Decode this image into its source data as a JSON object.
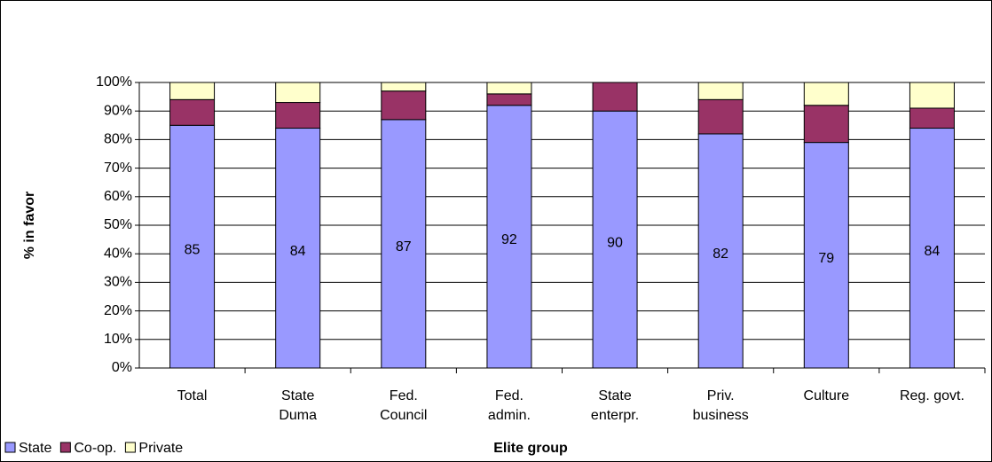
{
  "chart_data": {
    "type": "bar",
    "stacked": true,
    "x_label": "Elite group",
    "y_label": "% in favor",
    "categories": [
      "Total",
      "State Duma",
      "Fed. Council",
      "Fed. admin.",
      "State enterpr.",
      "Priv. business",
      "Culture",
      "Reg. govt."
    ],
    "series": [
      {
        "name": "State",
        "color": "#9999ff",
        "values": [
          85,
          84,
          87,
          92,
          90,
          82,
          79,
          84
        ]
      },
      {
        "name": "Co-op.",
        "color": "#993366",
        "values": [
          9,
          9,
          10,
          4,
          10,
          12,
          13,
          7
        ]
      },
      {
        "name": "Private",
        "color": "#ffffcc",
        "values": [
          6,
          7,
          3,
          4,
          0,
          6,
          8,
          9
        ]
      }
    ],
    "ylim": [
      0,
      100
    ],
    "yticks": [
      {
        "value": 0,
        "label": "0%"
      },
      {
        "value": 10,
        "label": "10%"
      },
      {
        "value": 20,
        "label": "20%"
      },
      {
        "value": 30,
        "label": "30%"
      },
      {
        "value": 40,
        "label": "40%"
      },
      {
        "value": 50,
        "label": "50%"
      },
      {
        "value": 60,
        "label": "60%"
      },
      {
        "value": 70,
        "label": "70%"
      },
      {
        "value": 80,
        "label": "80%"
      },
      {
        "value": 90,
        "label": "90%"
      },
      {
        "value": 100,
        "label": "100%"
      }
    ],
    "grid": true,
    "legend": "bottom-left"
  }
}
